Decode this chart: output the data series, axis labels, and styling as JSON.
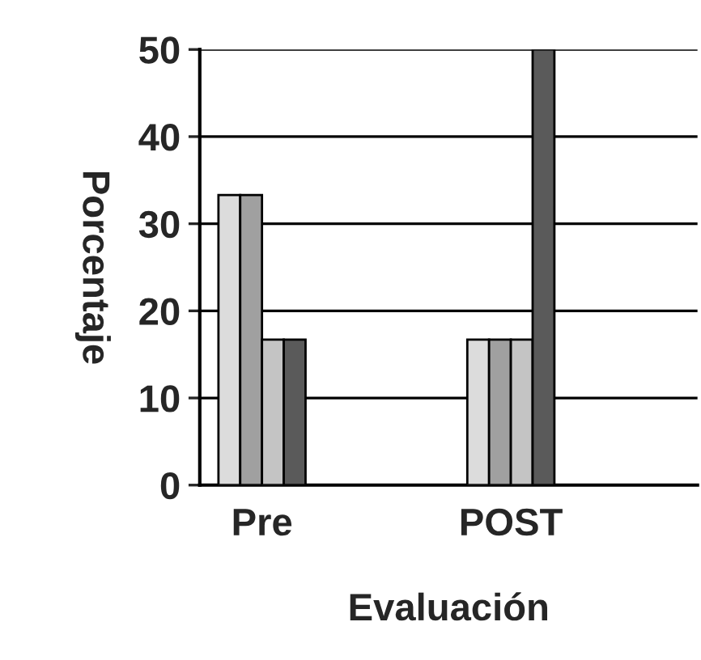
{
  "chart_data": {
    "type": "bar",
    "xlabel": "Evaluación",
    "ylabel": "Porcentaje",
    "categories": [
      "Pre",
      null,
      "POST",
      null
    ],
    "series": [
      {
        "color": "#dcdcdc",
        "values": [
          33.3,
          null,
          16.7,
          null
        ]
      },
      {
        "color": "#a0a0a0",
        "values": [
          33.3,
          null,
          16.7,
          null
        ]
      },
      {
        "color": "#c4c4c4",
        "values": [
          16.7,
          null,
          16.7,
          null
        ]
      },
      {
        "color": "#5a5a5a",
        "values": [
          16.7,
          null,
          50,
          null
        ]
      }
    ],
    "ylim": [
      0,
      50
    ],
    "yticks": [
      0,
      10,
      20,
      30,
      40,
      50
    ],
    "grid": "y",
    "legend": false
  }
}
